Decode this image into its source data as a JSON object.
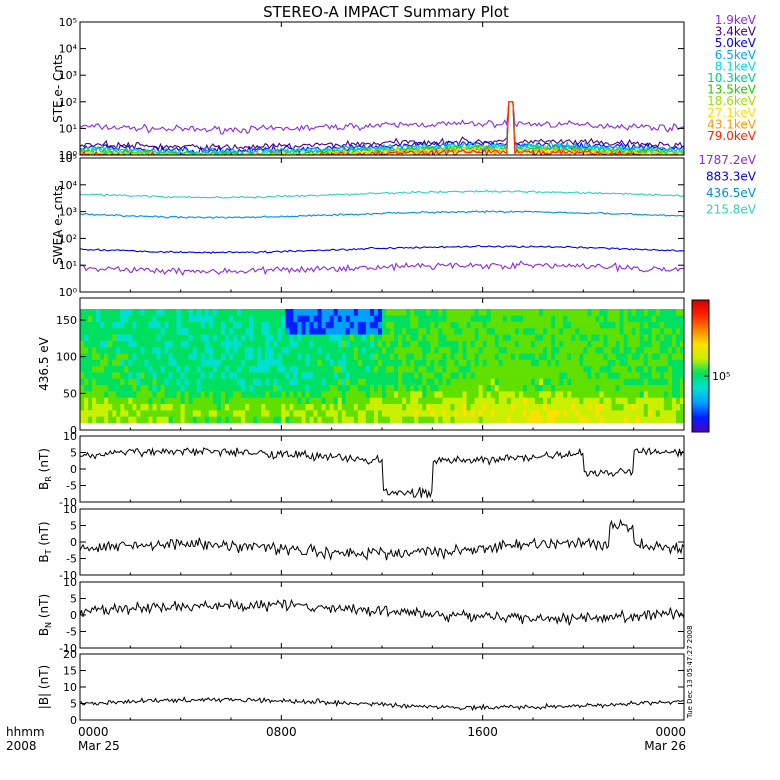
{
  "title": "STEREO-A IMPACT Summary Plot",
  "timestamp": "Tue Dec 13 05:47:27 2008",
  "chart_data": [
    {
      "id": "ste",
      "type": "line",
      "ylabel": "STE e- Cnts",
      "yscale": "log",
      "ylim": [
        1,
        100000
      ],
      "tick_labels": [
        "10⁰",
        "10¹",
        "10²",
        "10³",
        "10⁴",
        "10⁵"
      ],
      "series": [
        {
          "name": "1.9keV",
          "color": "#8a2be2",
          "level": 12
        },
        {
          "name": "3.4keV",
          "color": "#4b0082",
          "level": 2.6
        },
        {
          "name": "5.0keV",
          "color": "#0000ff",
          "level": 2.0
        },
        {
          "name": "6.5keV",
          "color": "#00a6ff",
          "level": 1.8
        },
        {
          "name": "8.1keV",
          "color": "#00e0e0",
          "level": 1.6
        },
        {
          "name": "10.3keV",
          "color": "#00d080",
          "level": 1.45
        },
        {
          "name": "13.5keV",
          "color": "#22cc00",
          "level": 1.35
        },
        {
          "name": "18.6keV",
          "color": "#a0e000",
          "level": 1.25
        },
        {
          "name": "27.1keV",
          "color": "#ffe000",
          "level": 1.15
        },
        {
          "name": "43.1keV",
          "color": "#ff9900",
          "level": 1.08
        },
        {
          "name": "79.0keV",
          "color": "#ff2200",
          "level": 1.02
        }
      ]
    },
    {
      "id": "swea",
      "type": "line",
      "ylabel": "SWEA e- cnts",
      "yscale": "log",
      "ylim": [
        1,
        100000
      ],
      "tick_labels": [
        "10⁰",
        "10¹",
        "10²",
        "10³",
        "10⁴",
        "10⁵"
      ],
      "series": [
        {
          "name": "1787.2eV",
          "color": "#8a2be2",
          "level": 8
        },
        {
          "name": "883.3eV",
          "color": "#0000ee",
          "level": 40
        },
        {
          "name": "436.5eV",
          "color": "#0090e0",
          "level": 800
        },
        {
          "name": "215.8eV",
          "color": "#30d0c0",
          "level": 4500
        }
      ]
    },
    {
      "id": "pad",
      "type": "heatmap",
      "ylabel": "436.5 eV",
      "ylim": [
        0,
        180
      ],
      "yticks": [
        0,
        50,
        100,
        150
      ],
      "colorbar_label": "10⁵"
    },
    {
      "id": "br",
      "type": "line",
      "ylabel_main": "B",
      "ylabel_sub": "R",
      "ylabel_unit": "(nT)",
      "ylim": [
        -10,
        10
      ],
      "yticks": [
        -10,
        -5,
        0,
        5,
        10
      ]
    },
    {
      "id": "bt",
      "type": "line",
      "ylabel_main": "B",
      "ylabel_sub": "T",
      "ylabel_unit": "(nT)",
      "ylim": [
        -10,
        10
      ],
      "yticks": [
        -10,
        -5,
        0,
        5,
        10
      ]
    },
    {
      "id": "bn",
      "type": "line",
      "ylabel_main": "B",
      "ylabel_sub": "N",
      "ylabel_unit": "(nT)",
      "ylim": [
        -10,
        10
      ],
      "yticks": [
        -10,
        -5,
        0,
        5,
        10
      ]
    },
    {
      "id": "bmag",
      "type": "line",
      "ylabel_main": "|B|",
      "ylabel_sub": "",
      "ylabel_unit": "(nT)",
      "ylim": [
        0,
        20
      ],
      "yticks": [
        0,
        5,
        10,
        15,
        20
      ]
    }
  ],
  "xaxis": {
    "range_hours": [
      0,
      24
    ],
    "ticks": [
      {
        "hour": 0,
        "label": "0000",
        "sublabel": "Mar 25"
      },
      {
        "hour": 8,
        "label": "0800",
        "sublabel": ""
      },
      {
        "hour": 16,
        "label": "1600",
        "sublabel": ""
      },
      {
        "hour": 24,
        "label": "0000",
        "sublabel": "Mar 26"
      }
    ],
    "corner_label": "hhmm",
    "corner_sublabel": "2008"
  }
}
